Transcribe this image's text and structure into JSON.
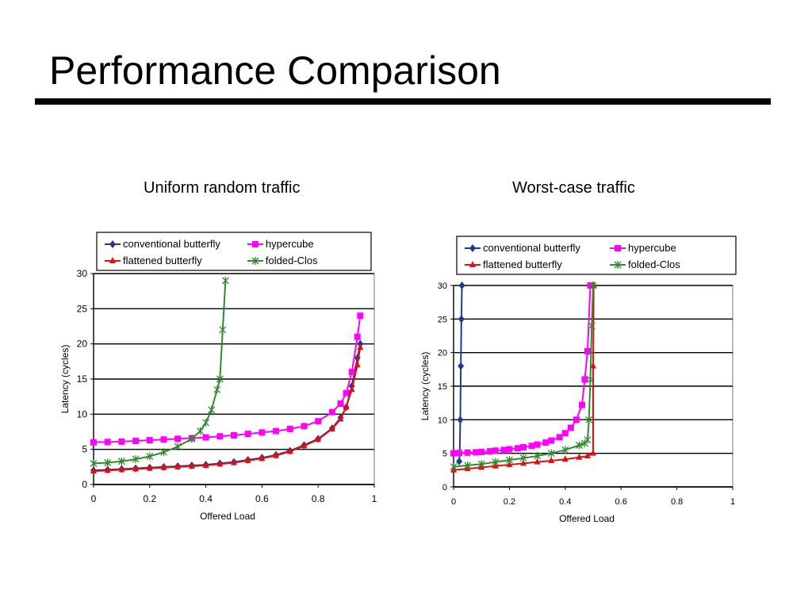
{
  "slide": {
    "title": "Performance Comparison"
  },
  "chart_data": [
    {
      "type": "line",
      "subtitle": "Uniform random traffic",
      "xlabel": "Offered Load",
      "ylabel": "Latency (cycles)",
      "xlim": [
        0,
        1
      ],
      "ylim": [
        0,
        30
      ],
      "xticks": [
        "0",
        "0.2",
        "0.4",
        "0.6",
        "0.8",
        "1"
      ],
      "yticks": [
        "0",
        "5",
        "10",
        "15",
        "20",
        "25",
        "30"
      ],
      "grid": "horizontal",
      "legend_position": "top",
      "series": [
        {
          "name": "conventional butterfly",
          "color": "#1f3a93",
          "marker": "diamond",
          "x": [
            0,
            0.05,
            0.1,
            0.15,
            0.2,
            0.25,
            0.3,
            0.35,
            0.4,
            0.45,
            0.5,
            0.55,
            0.6,
            0.65,
            0.7,
            0.75,
            0.8,
            0.85,
            0.88,
            0.9,
            0.92,
            0.94,
            0.95
          ],
          "y": [
            2,
            2.1,
            2.2,
            2.3,
            2.4,
            2.5,
            2.6,
            2.7,
            2.8,
            3.0,
            3.2,
            3.5,
            3.8,
            4.2,
            4.8,
            5.6,
            6.5,
            8,
            9.5,
            11,
            14,
            18,
            20
          ]
        },
        {
          "name": "hypercube",
          "color": "#ff00ff",
          "marker": "square",
          "x": [
            0,
            0.05,
            0.1,
            0.15,
            0.2,
            0.25,
            0.3,
            0.35,
            0.4,
            0.45,
            0.5,
            0.55,
            0.6,
            0.65,
            0.7,
            0.75,
            0.8,
            0.85,
            0.88,
            0.9,
            0.92,
            0.94,
            0.95
          ],
          "y": [
            6,
            6.05,
            6.1,
            6.2,
            6.3,
            6.4,
            6.5,
            6.6,
            6.7,
            6.85,
            7.0,
            7.2,
            7.4,
            7.6,
            7.9,
            8.3,
            9.0,
            10.3,
            11.5,
            13,
            16,
            21,
            24
          ]
        },
        {
          "name": "flattened butterfly",
          "color": "#e01010",
          "marker": "triangle",
          "x": [
            0,
            0.05,
            0.1,
            0.15,
            0.2,
            0.25,
            0.3,
            0.35,
            0.4,
            0.45,
            0.5,
            0.55,
            0.6,
            0.65,
            0.7,
            0.75,
            0.8,
            0.85,
            0.88,
            0.9,
            0.92,
            0.94,
            0.95
          ],
          "y": [
            1.9,
            2.0,
            2.1,
            2.2,
            2.3,
            2.4,
            2.5,
            2.6,
            2.7,
            2.9,
            3.1,
            3.4,
            3.7,
            4.1,
            4.7,
            5.5,
            6.4,
            7.9,
            9.3,
            11,
            13.5,
            17,
            19.5
          ]
        },
        {
          "name": "folded-Clos",
          "color": "#2e8b2e",
          "marker": "star",
          "x": [
            0,
            0.05,
            0.1,
            0.15,
            0.2,
            0.25,
            0.3,
            0.35,
            0.38,
            0.4,
            0.42,
            0.44,
            0.45,
            0.46,
            0.47
          ],
          "y": [
            3,
            3.1,
            3.3,
            3.6,
            4.0,
            4.6,
            5.4,
            6.5,
            7.6,
            8.8,
            10.6,
            13.5,
            15,
            22,
            29
          ]
        }
      ]
    },
    {
      "type": "line",
      "subtitle": "Worst-case traffic",
      "xlabel": "Offered Load",
      "ylabel": "Latency (cycles)",
      "xlim": [
        0,
        1
      ],
      "ylim": [
        0,
        30
      ],
      "xticks": [
        "0",
        "0.2",
        "0.4",
        "0.6",
        "0.8",
        "1"
      ],
      "yticks": [
        "0",
        "5",
        "10",
        "15",
        "20",
        "25",
        "30"
      ],
      "grid": "horizontal",
      "legend_position": "top",
      "series": [
        {
          "name": "conventional butterfly",
          "color": "#1f3a93",
          "marker": "diamond",
          "x": [
            0.02,
            0.022,
            0.024,
            0.026,
            0.028,
            0.03
          ],
          "y": [
            3.8,
            5,
            10,
            18,
            25,
            30
          ]
        },
        {
          "name": "hypercube",
          "color": "#ff00ff",
          "marker": "square",
          "x": [
            0,
            0.02,
            0.05,
            0.08,
            0.1,
            0.13,
            0.15,
            0.18,
            0.2,
            0.23,
            0.25,
            0.28,
            0.3,
            0.33,
            0.35,
            0.38,
            0.4,
            0.42,
            0.44,
            0.46,
            0.47,
            0.48,
            0.49
          ],
          "y": [
            5,
            5.05,
            5.1,
            5.15,
            5.2,
            5.3,
            5.4,
            5.5,
            5.6,
            5.75,
            5.9,
            6.1,
            6.3,
            6.6,
            6.9,
            7.4,
            8.0,
            8.8,
            10,
            12.2,
            16,
            20.2,
            30
          ]
        },
        {
          "name": "flattened butterfly",
          "color": "#e01010",
          "marker": "triangle",
          "x": [
            0,
            0.05,
            0.1,
            0.15,
            0.2,
            0.25,
            0.3,
            0.35,
            0.4,
            0.45,
            0.48,
            0.5,
            0.5,
            0.502
          ],
          "y": [
            2.5,
            2.7,
            2.9,
            3.1,
            3.3,
            3.5,
            3.7,
            3.9,
            4.1,
            4.4,
            4.6,
            5,
            18,
            30
          ]
        },
        {
          "name": "folded-Clos",
          "color": "#2e8b2e",
          "marker": "star",
          "x": [
            0,
            0.05,
            0.1,
            0.15,
            0.2,
            0.25,
            0.3,
            0.35,
            0.4,
            0.45,
            0.47,
            0.48,
            0.485,
            0.49,
            0.495,
            0.5
          ],
          "y": [
            3,
            3.2,
            3.4,
            3.7,
            4.0,
            4.3,
            4.6,
            5.0,
            5.5,
            6.2,
            6.5,
            7,
            10,
            16,
            24,
            30
          ]
        }
      ]
    }
  ]
}
